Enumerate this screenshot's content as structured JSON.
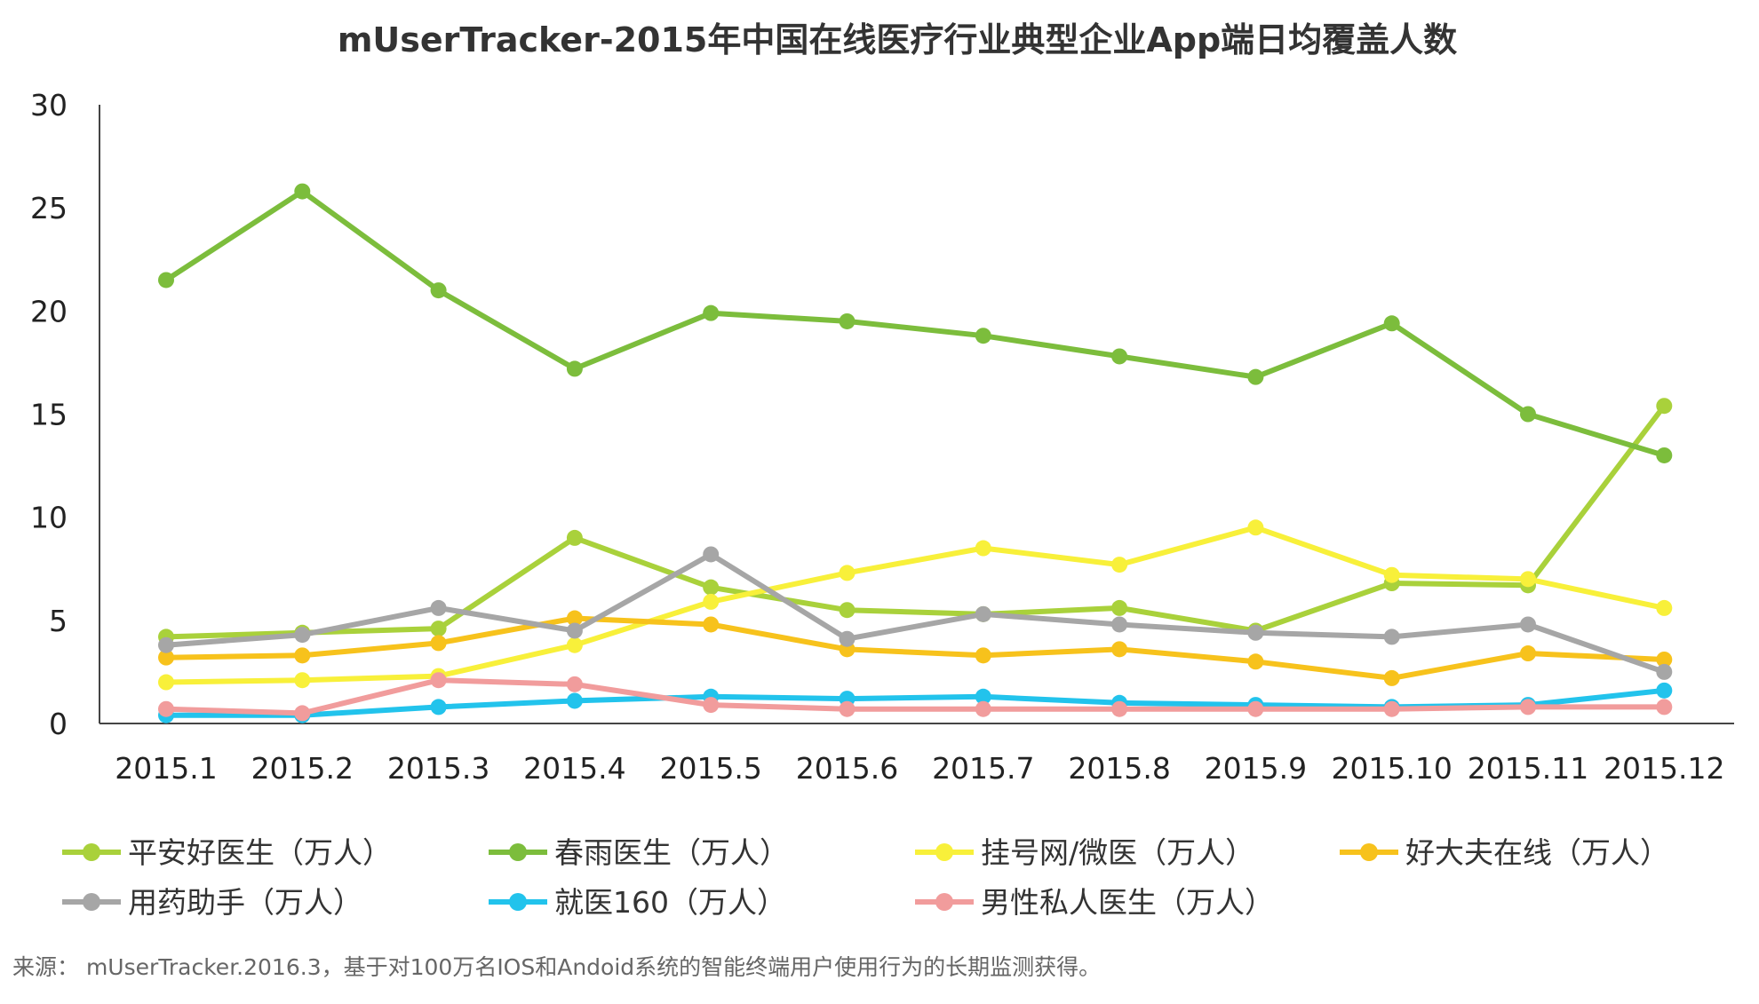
{
  "chart_data": {
    "type": "line",
    "title": "mUserTracker-2015年中国在线医疗行业典型企业App端日均覆盖人数",
    "xlabel": "",
    "ylabel": "",
    "categories": [
      "2015.1",
      "2015.2",
      "2015.3",
      "2015.4",
      "2015.5",
      "2015.6",
      "2015.7",
      "2015.8",
      "2015.9",
      "2015.10",
      "2015.11",
      "2015.12"
    ],
    "ylim": [
      0,
      30
    ],
    "yticks": [
      0,
      5,
      10,
      15,
      20,
      25,
      30
    ],
    "grid": false,
    "legend_position": "bottom",
    "series": [
      {
        "name": "平安好医生（万人）",
        "color": "#a9d13b",
        "values": [
          4.2,
          4.4,
          4.6,
          9.0,
          6.6,
          5.5,
          5.3,
          5.6,
          4.5,
          6.8,
          6.7,
          15.4
        ]
      },
      {
        "name": "春雨医生（万人）",
        "color": "#7cbd3c",
        "values": [
          21.5,
          25.8,
          21.0,
          17.2,
          19.9,
          19.5,
          18.8,
          17.8,
          16.8,
          19.4,
          15.0,
          13.0
        ]
      },
      {
        "name": "挂号网/微医（万人）",
        "color": "#f8f03a",
        "values": [
          2.0,
          2.1,
          2.3,
          3.8,
          5.9,
          7.3,
          8.5,
          7.7,
          9.5,
          7.2,
          7.0,
          5.6
        ]
      },
      {
        "name": "好大夫在线（万人）",
        "color": "#f7c21c",
        "values": [
          3.2,
          3.3,
          3.9,
          5.1,
          4.8,
          3.6,
          3.3,
          3.6,
          3.0,
          2.2,
          3.4,
          3.1
        ]
      },
      {
        "name": "用药助手（万人）",
        "color": "#a6a6a6",
        "values": [
          3.8,
          4.3,
          5.6,
          4.5,
          8.2,
          4.1,
          5.3,
          4.8,
          4.4,
          4.2,
          4.8,
          2.5
        ]
      },
      {
        "name": "就医160（万人）",
        "color": "#22c3ec",
        "values": [
          0.4,
          0.4,
          0.8,
          1.1,
          1.3,
          1.2,
          1.3,
          1.0,
          0.9,
          0.8,
          0.9,
          1.6
        ]
      },
      {
        "name": "男性私人医生（万人）",
        "color": "#f19c9c",
        "values": [
          0.7,
          0.5,
          2.1,
          1.9,
          0.9,
          0.7,
          0.7,
          0.7,
          0.7,
          0.7,
          0.8,
          0.8
        ]
      }
    ]
  },
  "footer": {
    "source": "来源： mUserTracker.2016.3，基于对100万名IOS和Andoid系统的智能终端用户使用行为的长期监测获得。"
  }
}
